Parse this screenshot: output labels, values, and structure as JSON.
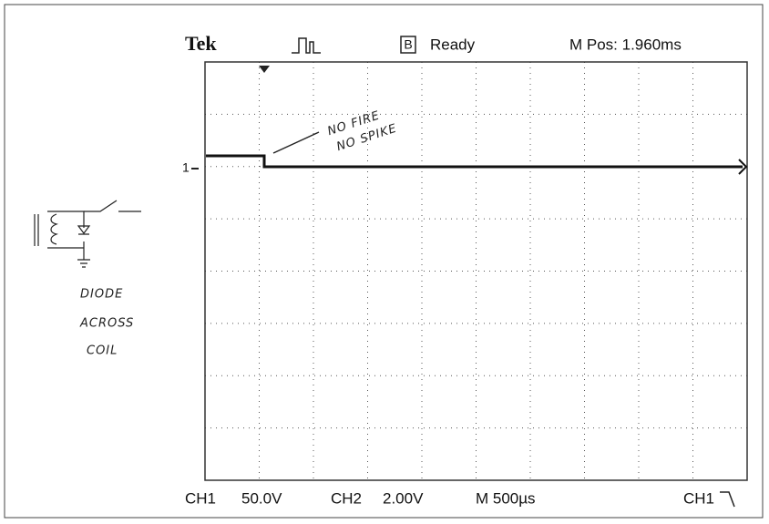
{
  "header": {
    "brand": "Tek",
    "channel_box": "B",
    "status": "Ready",
    "position": "M Pos: 1.960ms"
  },
  "marker": "1",
  "annotation": [
    "NO FIRE",
    "NO SPIKE"
  ],
  "side_note": [
    "DIODE",
    "ACROSS",
    "COIL"
  ],
  "footer": {
    "ch1_label": "CH1",
    "ch1_scale": "50.0V",
    "ch2_label": "CH2",
    "ch2_scale": "2.00V",
    "timebase": "M 500µs",
    "trigger_source": "CH1"
  }
}
